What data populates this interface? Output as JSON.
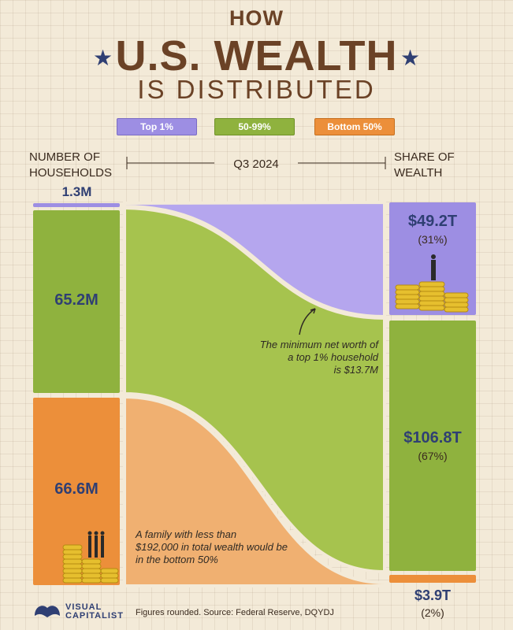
{
  "title": {
    "line1": "HOW",
    "line2": "U.S. WEALTH",
    "line3": "IS DISTRIBUTED"
  },
  "legend": [
    {
      "label": "Top 1%",
      "color": "#9d8ee3"
    },
    {
      "label": "50-99%",
      "color": "#8fb23e"
    },
    {
      "label": "Bottom 50%",
      "color": "#ec8f3a"
    }
  ],
  "headers": {
    "left": "NUMBER OF HOUSEHOLDS",
    "center": "Q3 2024",
    "right": "SHARE OF WEALTH"
  },
  "chart_data": {
    "type": "sankey",
    "period": "Q3 2024",
    "left_label": "NUMBER OF HOUSEHOLDS",
    "right_label": "SHARE OF WEALTH",
    "groups": [
      {
        "name": "Top 1%",
        "households": "1.3M",
        "wealth": "$49.2T",
        "share": "(31%)",
        "households_m": 1.3,
        "wealth_t": 49.2,
        "share_pct": 31,
        "color": "#9d8ee3"
      },
      {
        "name": "50-99%",
        "households": "65.2M",
        "wealth": "$106.8T",
        "share": "(67%)",
        "households_m": 65.2,
        "wealth_t": 106.8,
        "share_pct": 67,
        "color": "#8fb23e"
      },
      {
        "name": "Bottom 50%",
        "households": "66.6M",
        "wealth": "$3.9T",
        "share": "(2%)",
        "households_m": 66.6,
        "wealth_t": 3.9,
        "share_pct": 2,
        "color": "#ec8f3a"
      }
    ],
    "annotations": [
      "The minimum net worth of a top 1% household is $13.7M",
      "A family with less than $192,000 in total wealth would be in the bottom 50%"
    ]
  },
  "notes": {
    "top1": [
      "The minimum net worth of",
      "a top 1% household",
      "is $13.7M"
    ],
    "bottom": [
      "A family with less than",
      "$192,000 in total wealth would be",
      "in the bottom 50%"
    ]
  },
  "footer": {
    "brand_line1": "VISUAL",
    "brand_line2": "CAPITALIST",
    "source": "Figures rounded. Source: Federal Reserve, DQYDJ"
  },
  "colors": {
    "brown": "#6b4226",
    "navy": "#2f3f73",
    "purple": "#9d8ee3",
    "green": "#8fb23e",
    "orange": "#ec8f3a",
    "gold": "#e6bf2e"
  }
}
